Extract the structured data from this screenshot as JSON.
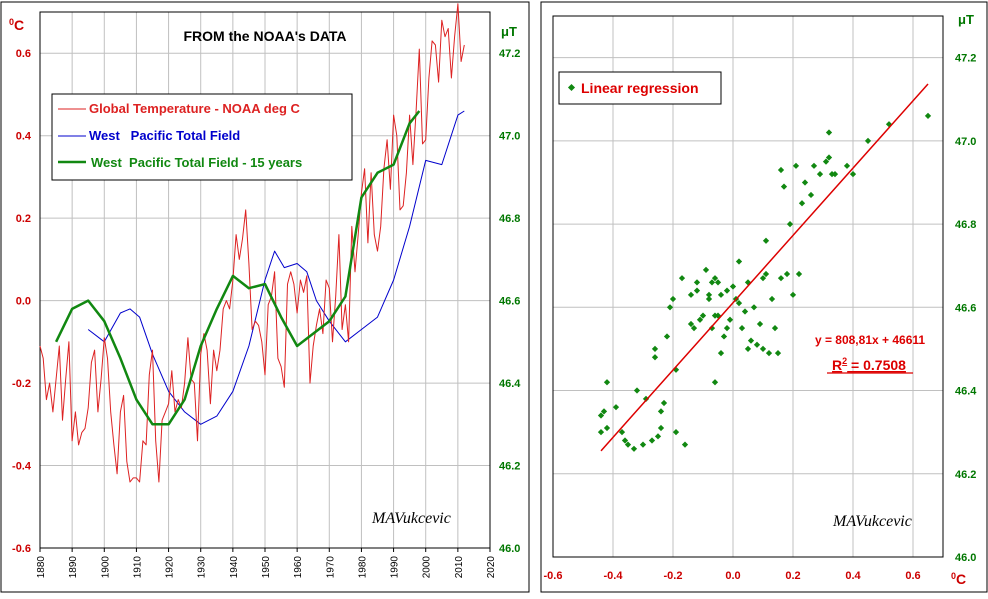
{
  "chart_data": [
    {
      "type": "line",
      "title": "FROM the NOAA's DATA",
      "signature": "MAVukcevic",
      "y_left_label": "0C",
      "y_left_label_base": "0",
      "y_left_label_unit": "C",
      "y_right_label": "μT",
      "xlim": [
        1880,
        2020
      ],
      "ylim_left": [
        -0.6,
        0.7
      ],
      "ylim_right": [
        46.0,
        47.3
      ],
      "x_ticks": [
        1880,
        1890,
        1900,
        1910,
        1920,
        1930,
        1940,
        1950,
        1960,
        1970,
        1980,
        1990,
        2000,
        2010,
        2020
      ],
      "x_tick_labels": [
        "1880",
        "1890",
        "1900",
        "1910",
        "1920",
        "1930",
        "1940",
        "1950",
        "1960",
        "1970",
        "1980",
        "1990",
        "2000",
        "2010",
        "2020"
      ],
      "y_left_ticks": [
        -0.6,
        -0.4,
        -0.2,
        0.0,
        0.2,
        0.4,
        0.6
      ],
      "y_left_tick_labels": [
        "-0.6",
        "-0.4",
        "-0.2",
        "0.0",
        "0.2",
        "0.4",
        "0.6"
      ],
      "y_right_ticks": [
        46.0,
        46.2,
        46.4,
        46.6,
        46.8,
        47.0,
        47.2
      ],
      "y_right_tick_labels": [
        "46.0",
        "46.2",
        "46.4",
        "46.6",
        "46.8",
        "47.0",
        "47.2"
      ],
      "legend": {
        "items": [
          {
            "label": "Global Temperature - NOAA deg C",
            "color": "#dd2222"
          },
          {
            "label": "West   Pacific Total Field",
            "color": "#0000cc"
          },
          {
            "label": "West  Pacific Total Field - 15 years",
            "color": "#118811"
          }
        ]
      },
      "series": [
        {
          "name": "Global Temperature - NOAA deg C",
          "color": "#dd2222",
          "axis": "left",
          "x": [
            1880,
            1881,
            1882,
            1883,
            1884,
            1885,
            1886,
            1887,
            1888,
            1889,
            1890,
            1891,
            1892,
            1893,
            1894,
            1895,
            1896,
            1897,
            1898,
            1899,
            1900,
            1901,
            1902,
            1903,
            1904,
            1905,
            1906,
            1907,
            1908,
            1909,
            1910,
            1911,
            1912,
            1913,
            1914,
            1915,
            1916,
            1917,
            1918,
            1919,
            1920,
            1921,
            1922,
            1923,
            1924,
            1925,
            1926,
            1927,
            1928,
            1929,
            1930,
            1931,
            1932,
            1933,
            1934,
            1935,
            1936,
            1937,
            1938,
            1939,
            1940,
            1941,
            1942,
            1943,
            1944,
            1945,
            1946,
            1947,
            1948,
            1949,
            1950,
            1951,
            1952,
            1953,
            1954,
            1955,
            1956,
            1957,
            1958,
            1959,
            1960,
            1961,
            1962,
            1963,
            1964,
            1965,
            1966,
            1967,
            1968,
            1969,
            1970,
            1971,
            1972,
            1973,
            1974,
            1975,
            1976,
            1977,
            1978,
            1979,
            1980,
            1981,
            1982,
            1983,
            1984,
            1985,
            1986,
            1987,
            1988,
            1989,
            1990,
            1991,
            1992,
            1993,
            1994,
            1995,
            1996,
            1997,
            1998,
            1999,
            2000,
            2001,
            2002,
            2003,
            2004,
            2005,
            2006,
            2007,
            2008,
            2009,
            2010,
            2011,
            2012
          ],
          "y": [
            -0.11,
            -0.14,
            -0.24,
            -0.2,
            -0.27,
            -0.19,
            -0.11,
            -0.29,
            -0.19,
            -0.1,
            -0.34,
            -0.27,
            -0.35,
            -0.32,
            -0.31,
            -0.26,
            -0.15,
            -0.12,
            -0.27,
            -0.19,
            -0.09,
            -0.14,
            -0.27,
            -0.35,
            -0.42,
            -0.27,
            -0.23,
            -0.39,
            -0.44,
            -0.43,
            -0.43,
            -0.44,
            -0.34,
            -0.35,
            -0.18,
            -0.12,
            -0.34,
            -0.44,
            -0.29,
            -0.27,
            -0.25,
            -0.17,
            -0.27,
            -0.24,
            -0.26,
            -0.2,
            -0.09,
            -0.19,
            -0.2,
            -0.34,
            -0.13,
            -0.08,
            -0.12,
            -0.25,
            -0.12,
            -0.17,
            -0.12,
            -0.02,
            0.0,
            -0.02,
            0.05,
            0.16,
            0.1,
            0.15,
            0.22,
            0.09,
            -0.07,
            -0.05,
            -0.06,
            -0.1,
            -0.18,
            -0.01,
            0.01,
            0.07,
            -0.14,
            -0.16,
            -0.21,
            0.04,
            0.07,
            0.04,
            -0.03,
            0.05,
            0.02,
            0.06,
            -0.2,
            -0.11,
            -0.06,
            -0.02,
            -0.08,
            0.05,
            0.03,
            -0.1,
            0.01,
            0.16,
            -0.07,
            -0.01,
            -0.1,
            0.18,
            0.07,
            0.16,
            0.26,
            0.32,
            0.14,
            0.31,
            0.16,
            0.12,
            0.18,
            0.32,
            0.39,
            0.27,
            0.45,
            0.4,
            0.22,
            0.23,
            0.31,
            0.45,
            0.33,
            0.46,
            0.61,
            0.38,
            0.39,
            0.54,
            0.63,
            0.62,
            0.53,
            0.68,
            0.64,
            0.66,
            0.54,
            0.64,
            0.72,
            0.58,
            0.62
          ]
        },
        {
          "name": "West   Pacific Total Field",
          "color": "#0000cc",
          "axis": "right",
          "x": [
            1895,
            1900,
            1905,
            1908,
            1911,
            1915,
            1920,
            1925,
            1930,
            1935,
            1940,
            1945,
            1950,
            1953,
            1956,
            1960,
            1963,
            1966,
            1970,
            1975,
            1980,
            1985,
            1990,
            1995,
            2000,
            2005,
            2010,
            2012
          ],
          "y": [
            46.53,
            46.5,
            46.57,
            46.58,
            46.56,
            46.47,
            46.38,
            46.33,
            46.3,
            46.32,
            46.38,
            46.49,
            46.65,
            46.72,
            46.68,
            46.69,
            46.67,
            46.6,
            46.55,
            46.5,
            46.53,
            46.56,
            46.65,
            46.78,
            46.94,
            46.93,
            47.05,
            47.06
          ]
        },
        {
          "name": "West  Pacific Total Field - 15 years",
          "color": "#118811",
          "axis": "right",
          "x": [
            1885,
            1890,
            1895,
            1900,
            1905,
            1910,
            1915,
            1920,
            1925,
            1930,
            1935,
            1940,
            1945,
            1950,
            1955,
            1960,
            1965,
            1970,
            1975,
            1980,
            1985,
            1990,
            1995,
            1998
          ],
          "y": [
            46.5,
            46.58,
            46.6,
            46.55,
            46.46,
            46.36,
            46.3,
            46.3,
            46.36,
            46.49,
            46.58,
            46.66,
            46.63,
            46.64,
            46.56,
            46.49,
            46.52,
            46.55,
            46.61,
            46.85,
            46.91,
            46.93,
            47.03,
            47.06
          ]
        }
      ]
    },
    {
      "type": "scatter",
      "title": "",
      "signature": "MAVukcevic",
      "x_label": "0C",
      "x_label_base": "0",
      "x_label_unit": "C",
      "y_label": "μT",
      "xlim": [
        -0.6,
        0.7
      ],
      "ylim": [
        46.0,
        47.3
      ],
      "x_ticks": [
        -0.6,
        -0.4,
        -0.2,
        0.0,
        0.2,
        0.4,
        0.6
      ],
      "x_tick_labels": [
        "-0.6",
        "-0.4",
        "-0.2",
        "0.0",
        "0.2",
        "0.4",
        "0.6"
      ],
      "y_ticks": [
        46.0,
        46.2,
        46.4,
        46.6,
        46.8,
        47.0,
        47.2
      ],
      "y_tick_labels": [
        "46.0",
        "46.2",
        "46.4",
        "46.6",
        "46.8",
        "47.0",
        "47.2"
      ],
      "legend": {
        "items": [
          {
            "label": "Linear regression",
            "color": "#118811"
          }
        ]
      },
      "regression": {
        "equation": "y = 808,81x + 46611",
        "r2_label": "R",
        "r2_sup": "2",
        "r2_value": " = 0.7508",
        "color": "#dd0000",
        "x_start": -0.44,
        "x_end": 0.65,
        "slope": 0.8088,
        "intercept": 46.611
      },
      "points": {
        "color": "#118811",
        "x": [
          -0.44,
          -0.44,
          -0.43,
          -0.42,
          -0.42,
          -0.39,
          -0.37,
          -0.36,
          -0.35,
          -0.33,
          -0.32,
          -0.3,
          -0.29,
          -0.27,
          -0.26,
          -0.26,
          -0.25,
          -0.24,
          -0.24,
          -0.23,
          -0.22,
          -0.21,
          -0.2,
          -0.19,
          -0.19,
          -0.17,
          -0.16,
          -0.14,
          -0.14,
          -0.13,
          -0.12,
          -0.12,
          -0.11,
          -0.1,
          -0.09,
          -0.08,
          -0.08,
          -0.07,
          -0.07,
          -0.06,
          -0.06,
          -0.06,
          -0.05,
          -0.05,
          -0.04,
          -0.04,
          -0.03,
          -0.02,
          -0.02,
          -0.01,
          0.0,
          0.01,
          0.02,
          0.02,
          0.03,
          0.04,
          0.05,
          0.05,
          0.06,
          0.07,
          0.08,
          0.09,
          0.1,
          0.1,
          0.11,
          0.11,
          0.12,
          0.13,
          0.14,
          0.15,
          0.16,
          0.16,
          0.17,
          0.18,
          0.19,
          0.2,
          0.21,
          0.22,
          0.23,
          0.24,
          0.26,
          0.27,
          0.29,
          0.31,
          0.32,
          0.32,
          0.33,
          0.34,
          0.38,
          0.4,
          0.45,
          0.52,
          0.65
        ],
        "y": [
          46.3,
          46.34,
          46.35,
          46.31,
          46.42,
          46.36,
          46.3,
          46.28,
          46.27,
          46.26,
          46.4,
          46.27,
          46.38,
          46.28,
          46.48,
          46.5,
          46.29,
          46.31,
          46.35,
          46.37,
          46.53,
          46.6,
          46.62,
          46.45,
          46.3,
          46.67,
          46.27,
          46.56,
          46.63,
          46.55,
          46.64,
          46.66,
          46.57,
          46.58,
          46.69,
          46.62,
          46.63,
          46.66,
          46.55,
          46.42,
          46.67,
          46.58,
          46.66,
          46.58,
          46.63,
          46.49,
          46.53,
          46.64,
          46.55,
          46.57,
          46.65,
          46.62,
          46.71,
          46.61,
          46.55,
          46.59,
          46.66,
          46.5,
          46.52,
          46.6,
          46.51,
          46.56,
          46.67,
          46.5,
          46.68,
          46.76,
          46.49,
          46.62,
          46.55,
          46.49,
          46.67,
          46.93,
          46.89,
          46.68,
          46.8,
          46.63,
          46.94,
          46.68,
          46.85,
          46.9,
          46.87,
          46.94,
          46.92,
          46.95,
          47.02,
          46.96,
          46.92,
          46.92,
          46.94,
          46.92,
          47.0,
          47.04,
          47.06
        ]
      }
    }
  ]
}
